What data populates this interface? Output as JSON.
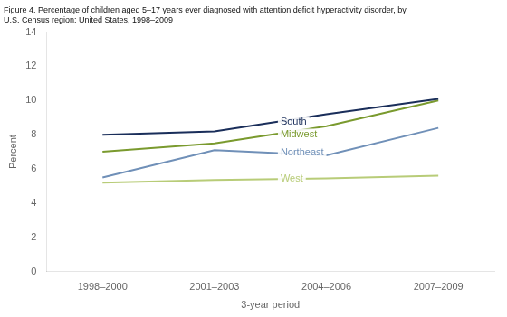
{
  "chart_data": {
    "type": "line",
    "title": [
      "Figure 4. Percentage of children aged 5–17 years ever diagnosed with attention deficit hyperactivity disorder, by",
      "U.S. Census region: United States, 1998–2009"
    ],
    "xlabel": "3-year period",
    "ylabel": "Percent",
    "categories": [
      "1998–2000",
      "2001–2003",
      "2004–2006",
      "2007–2009"
    ],
    "series": [
      {
        "name": "South",
        "color": "#1a2e5a",
        "values": [
          8.0,
          8.2,
          9.2,
          10.1
        ]
      },
      {
        "name": "Midwest",
        "color": "#7a9a2e",
        "values": [
          7.0,
          7.5,
          8.5,
          10.0
        ]
      },
      {
        "name": "Northeast",
        "color": "#7090b8",
        "values": [
          5.5,
          7.1,
          6.8,
          8.4
        ]
      },
      {
        "name": "West",
        "color": "#b8cc78",
        "values": [
          5.2,
          5.35,
          5.45,
          5.6
        ]
      }
    ],
    "ylim": [
      0,
      14
    ],
    "yticks": [
      0,
      2,
      4,
      6,
      8,
      10,
      12,
      14
    ],
    "grid": false
  }
}
